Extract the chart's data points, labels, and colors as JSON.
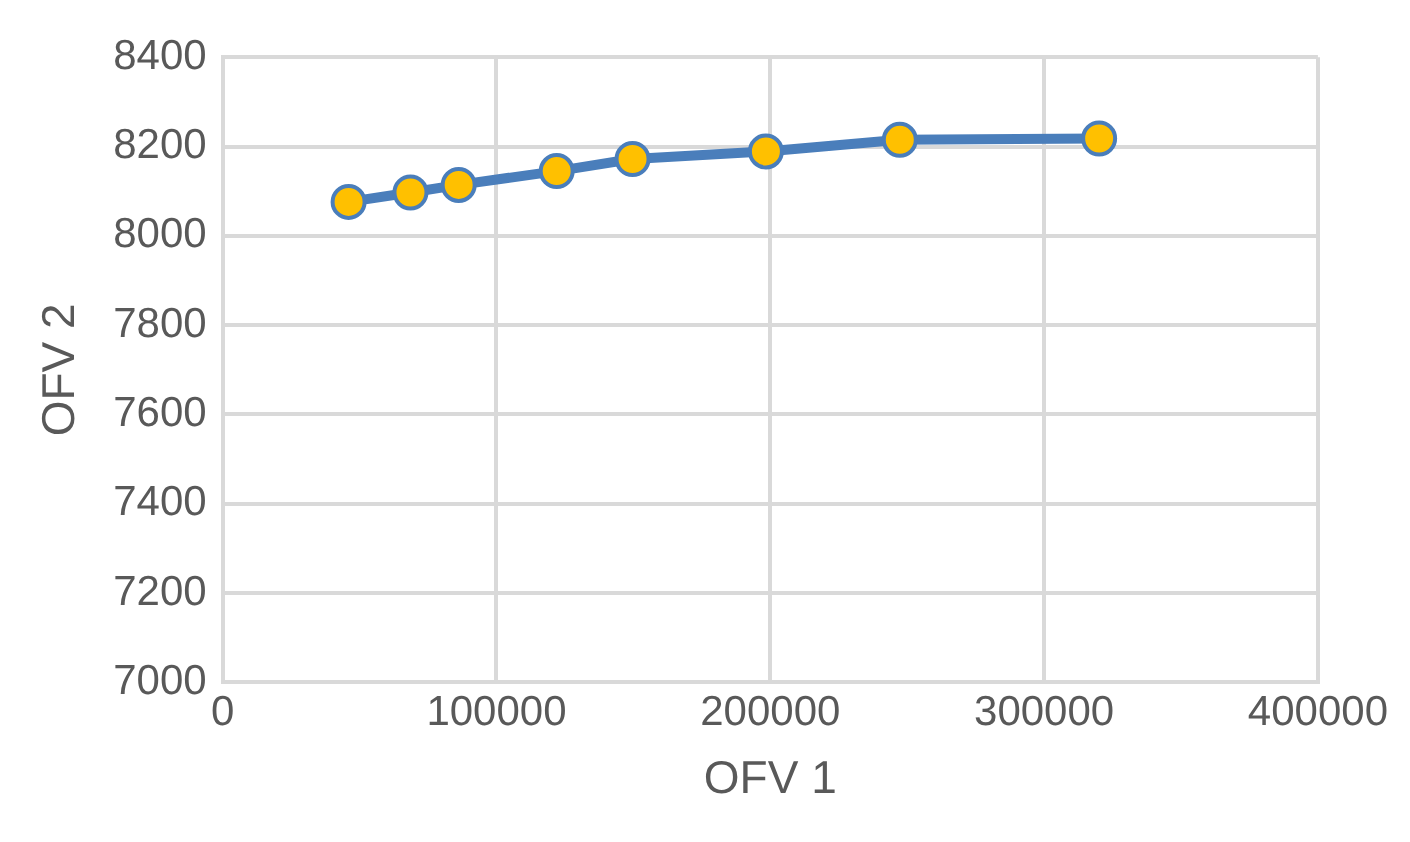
{
  "chart_data": {
    "type": "line",
    "xlabel": "OFV 1",
    "ylabel": "OFV 2",
    "series": [
      {
        "color": "#4a7ebb",
        "x": [
          46000,
          68600,
          86200,
          122000,
          149700,
          198400,
          247300,
          320100
        ],
        "values": [
          8076,
          8097,
          8114,
          8145,
          8172,
          8189,
          8215,
          8218
        ]
      }
    ],
    "xlim": [
      0,
      400000
    ],
    "xticks": [
      0,
      100000,
      200000,
      300000,
      400000
    ],
    "ylim": [
      7000,
      8400
    ],
    "yticks": [
      7000,
      7200,
      7400,
      7600,
      7800,
      8000,
      8200,
      8400
    ],
    "grid": true,
    "legend": false,
    "marker": "circle",
    "line_style": "solid"
  }
}
